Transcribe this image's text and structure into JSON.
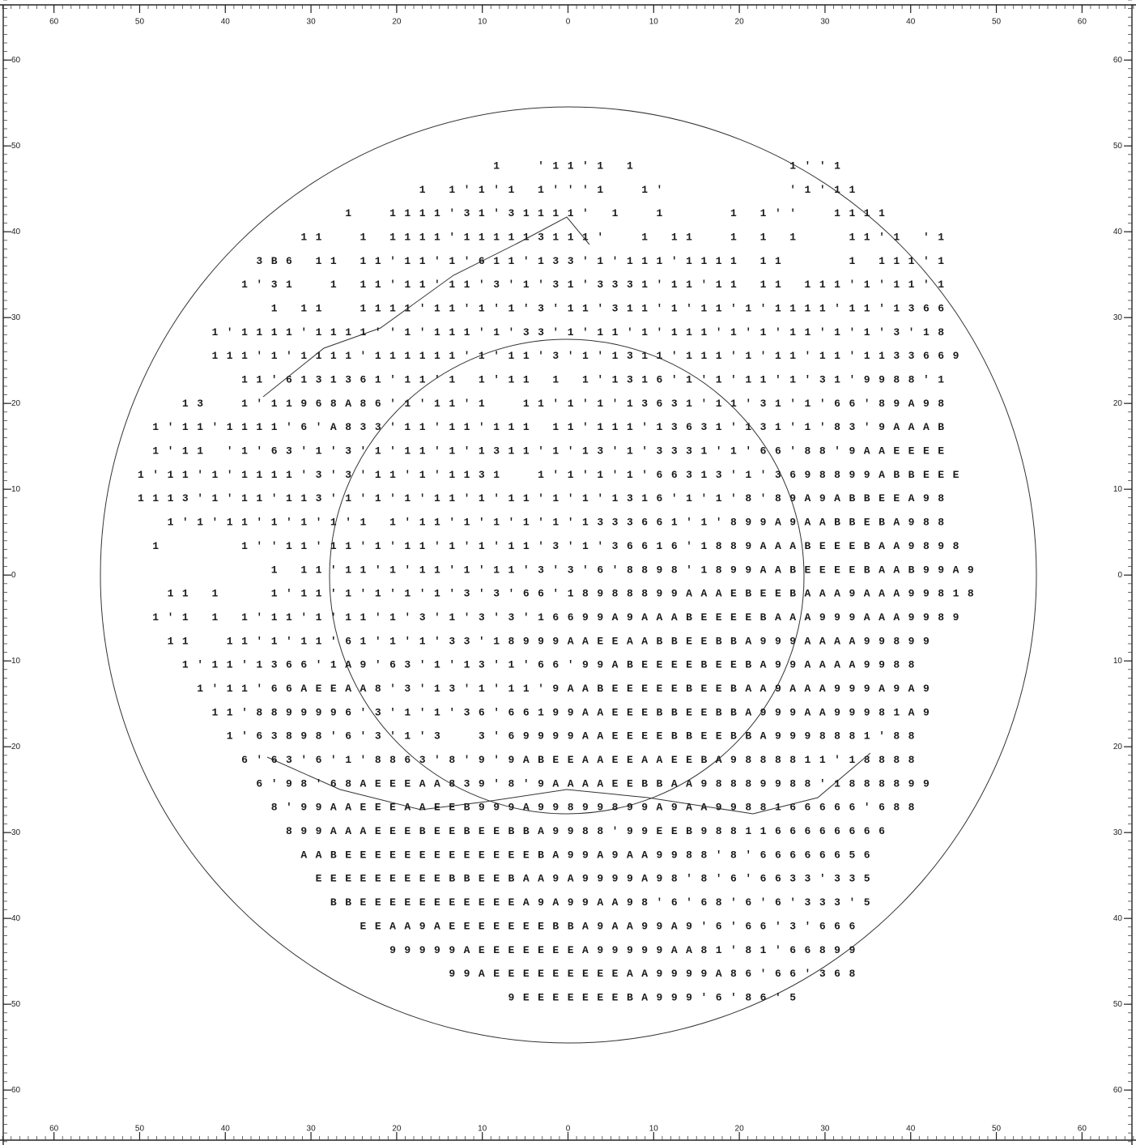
{
  "axes": {
    "xlim": [
      -66.3,
      66.3
    ],
    "ylim": [
      -66.4,
      67
    ],
    "xticks": [
      {
        "value": -60,
        "label": "60"
      },
      {
        "value": -50,
        "label": "50"
      },
      {
        "value": -40,
        "label": "40"
      },
      {
        "value": -30,
        "label": "30"
      },
      {
        "value": -20,
        "label": "20"
      },
      {
        "value": -10,
        "label": "10"
      },
      0,
      10,
      20,
      30,
      40,
      50,
      60
    ],
    "yticks": [
      {
        "value": -60,
        "label": "60"
      },
      {
        "value": -50,
        "label": "50"
      },
      {
        "value": -40,
        "label": "40"
      },
      {
        "value": -30,
        "label": "30"
      },
      {
        "value": -20,
        "label": "20"
      },
      {
        "value": -10,
        "label": "10"
      },
      0,
      10,
      20,
      30,
      40,
      50,
      60
    ]
  },
  "character_map": {
    "rows": [
      "                        1  '11'1 1          1''1",
      "                   1 1'1'1 1'''1  1'        '1'11",
      "              1  1111'31'31111' 1  1    1 1''  1111",
      "           11  1 1111'111113111'  1 11  1 1 1   11'1 '1",
      "        3B6 11 11'11'1'611'133'1'111'1111 11    1 111'1",
      "       1'31  1 11'11'11'3'1'31'3331'11'11 11 111'1'11'1",
      "         1 11  1111'11'1'1'3'11'311'1'11'1'1111'11'1366",
      "     1'1111'1111''1'111'1'33'1'11'1'111'1'1'11'1'1'3'18",
      "     111'1'1111'111111'1'11'3'1'1311'111'1'11'11'1133669",
      "       11'6131361'11'1 1'11 1 1'1316'1'1'11'1'31'9988'1",
      "   13  1'11968A86'1'11'1  11'1'1'13631'11'31'1'66'89A98",
      " 1'11'1111'6'A833'11'11'111 11'111'13631'131'1'83'9AAAB",
      " 1'11 '1'63'1'3'1'11'1'1311'1'13'1'3331'1'66'88'9AAEEEE",
      "1'11'1'1111'3'3'11'1'1131  1'1'1'1'66313'1'3698899ABBEEE",
      "1113'1'11'113'1'1'1'11'1'11'1'1'1316'1'1'8'89A9ABBEEA98",
      "  1'1'11'1'1'1'1 1'11'1'1'1'1'1333661'1'899A9AABBEBA988",
      " 1     1''11'11'1'11'1'1'11'3'1'36616'1889AAABEEEBAA9898",
      "         1 11'11'1'11'1'11'3'3'6'8898'1899AABEEEEBAAB99A9",
      "  11 1   1'11'1'1'1'1'3'3'66'18988899AAAEBEEBAAA9AAA99818",
      " 1'1 1 1'11'1'11'1'3'1'3'3'16699A9AAABEEEEBAAA999AAA9989",
      "  11  11'1'11'61'1'1'33'18999AAEEAABBEEBBA999AAAA99899",
      "   1'11'1366'1A9'63'1'13'1'66'99ABEEEEBEEBA99AAAA9988",
      "    1'11'66AEEAA8'3'13'1'11'9AABEEEEEBEEBAA9AAA999A9A9",
      "     11'8899996'3'1'1'36'66199AAEEEBBEEBBA999AA99981A9",
      "      1'63898'6'3'1'3  3'69999AAEEEEBBEEBBA9998881'88",
      "       6'63'6'1'8863'8'9'9ABEEAAEEAAEEBA9888811'18888",
      "        6'98'68AEEEAA839'8'9AAAAEEBBAA98889988'1888899",
      "         8'99AAEEEAAEEB999A99899899A9AA9988166666'688",
      "          899AAAEEEBEEBEEBBA9988'99EEB9881166666666",
      "           AABEEEEEEEEEEEEEBA99A9AA9988'8'66666656",
      "            EEEEEEEEEBBEEBAA9A9999A98'8'6'6633'335",
      "             BBEEEEEEEEEEEA9A99AA98'6'68'6'6'333'5",
      "               EEAA9AEEEEEEEBBA9AA99A9'6'66'3'666",
      "                 99999AEEEEEEEA99999AA81'81'66899",
      "                     99AEEEEEEEEEAA9999A86'66'368",
      "                         9EEEEEEEBA999'6'86'5"
    ]
  }
}
